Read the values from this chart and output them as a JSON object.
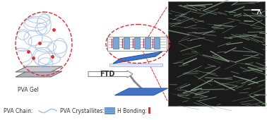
{
  "bg_color": "#ffffff",
  "fig_width": 3.78,
  "fig_height": 1.7,
  "title": "",
  "legend_text": "PVA Chain:        PVA Crystallites:        H Bonding:",
  "pva_gel_label": "PVA Gel",
  "ftd_label": "FTD",
  "arrow_color": "#ffffff",
  "arrow_edge_color": "#888888",
  "dashed_circle_color": "#e03030",
  "blue_color": "#4472c4",
  "light_blue": "#aec6e8",
  "gel_color": "#c0c0c8",
  "sem_image_placeholder": true
}
